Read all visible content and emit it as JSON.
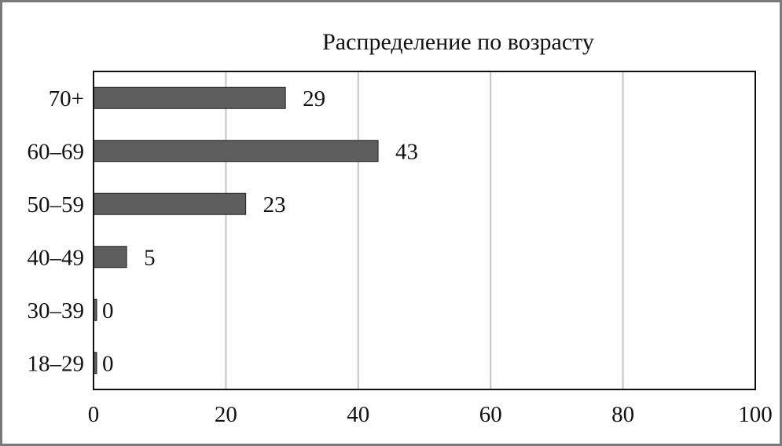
{
  "chart_data": {
    "type": "bar",
    "orientation": "horizontal",
    "title": "Распределение по возрасту",
    "categories": [
      "70+",
      "60–69",
      "50–59",
      "40–49",
      "30–39",
      "18–29"
    ],
    "values": [
      29,
      43,
      23,
      5,
      0,
      0
    ],
    "value_labels": [
      "29",
      "43",
      "23",
      "5",
      "0",
      "0"
    ],
    "xlim": [
      0,
      100
    ],
    "xticks": [
      0,
      20,
      40,
      60,
      80,
      100
    ],
    "xtick_labels": [
      "0",
      "20",
      "40",
      "60",
      "80",
      "100"
    ],
    "grid": "vertical",
    "legend": "none",
    "bar_color": "#5e5e5e"
  }
}
